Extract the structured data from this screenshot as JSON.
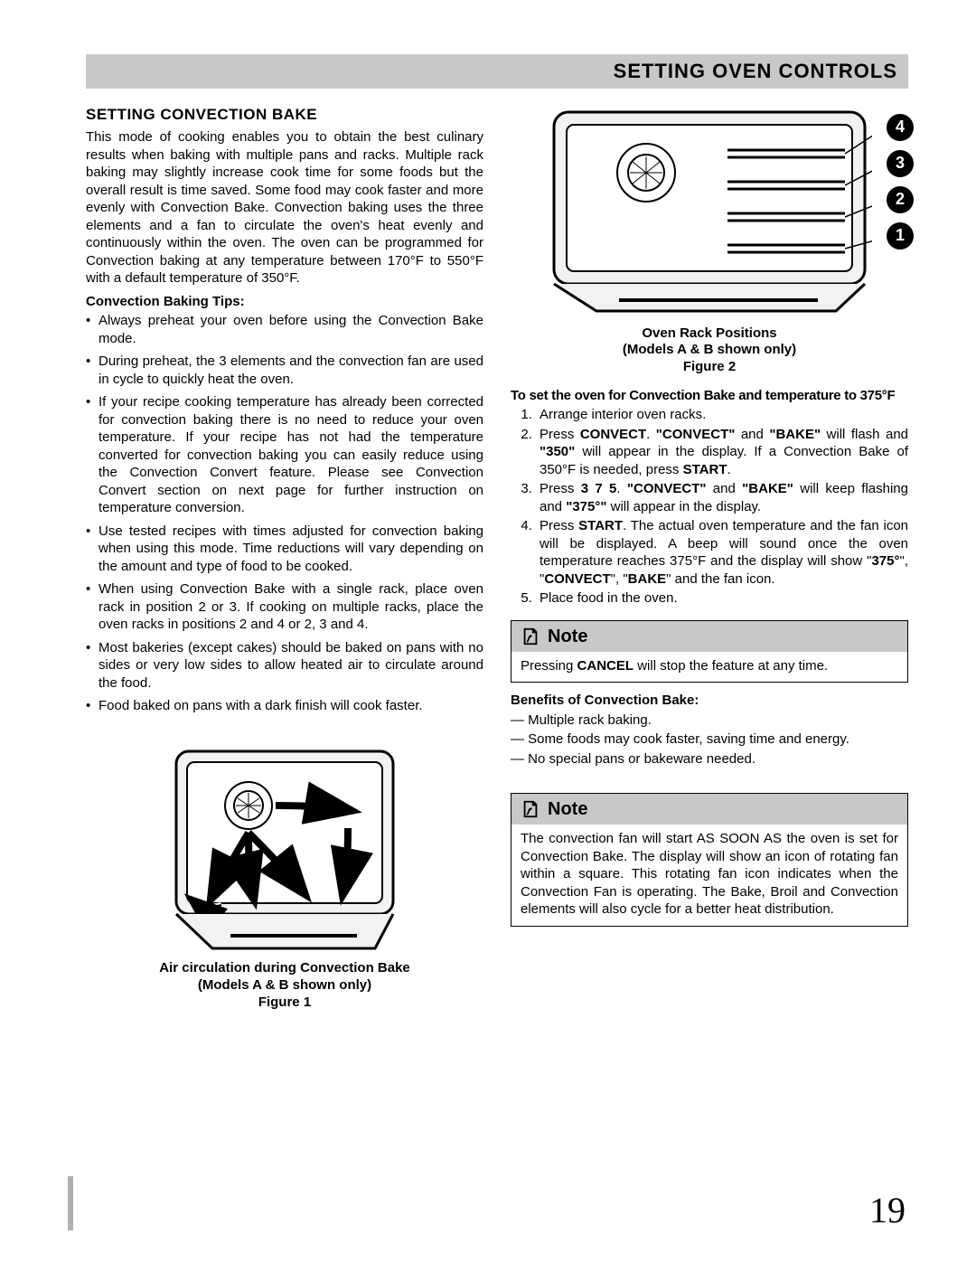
{
  "header": {
    "title": "SETTING OVEN CONTROLS"
  },
  "left": {
    "heading": "SETTING CONVECTION BAKE",
    "intro": "This mode of cooking enables you to obtain the best culinary results when baking with multiple pans and racks. Multiple rack baking may slightly increase cook time for some foods but the overall result is time saved. Some food may cook faster and more evenly with Convection Bake. Convection baking uses the three elements and a fan to circulate the oven's heat evenly and continuously within the oven. The oven can be programmed for Convection baking at any temperature between 170°F to 550°F with a default temperature of 350°F.",
    "tips_heading": "Convection Baking Tips:",
    "tips": [
      "Always preheat your oven before using the Convection Bake mode.",
      "During preheat, the 3 elements and the convection fan are used in cycle to quickly heat the oven.",
      "If your recipe cooking temperature has already been corrected for convection baking there is no need to reduce your oven temperature. If your recipe has not had the temperature converted for convection baking you can easily reduce using the Convection Convert feature. Please see Convection Convert section on next page for further instruction on temperature conversion.",
      "Use tested recipes with times adjusted for convection baking when using this mode. Time reductions will vary depending on the amount and type of food to be cooked.",
      "When using Convection Bake with a single rack, place oven rack in position 2 or 3. If cooking on multiple racks, place the oven racks in positions 2 and 4 or 2, 3 and 4.",
      "Most bakeries (except cakes) should be baked on pans with no sides or very low sides to allow heated air to circulate around the food.",
      "Food baked on pans with a dark finish will cook faster."
    ],
    "fig1_caption_l1": "Air circulation during Convection Bake",
    "fig1_caption_l2": "(Models A & B shown only)",
    "fig1_caption_l3": "Figure 1"
  },
  "right": {
    "rack_labels": [
      "4",
      "3",
      "2",
      "1"
    ],
    "fig2_caption_l1": "Oven Rack Positions",
    "fig2_caption_l2": "(Models A & B shown only)",
    "fig2_caption_l3": "Figure 2",
    "instr_heading": "To set the oven for Convection Bake and temperature to 375°F",
    "steps_html": [
      "Arrange interior oven racks.",
      "Press <b>CONVECT</b>. <b>\"CONVECT\"</b> and <b>\"BAKE\"</b> will flash and <b>\"350\"</b> will appear in the display. If a Convection Bake of 350°F is needed, press <b>START</b>.",
      "Press <b>3 7 5</b>. <b>\"CONVECT\"</b> and <b>\"BAKE\"</b> will keep flashing and <b>\"375°\"</b> will appear in the display.",
      "Press <b>START</b>. The actual oven temperature and the fan icon will be displayed. A beep will sound once the oven temperature reaches 375°F and the display will show \"<b>375°</b>\", \"<b>CONVECT</b>\", \"<b>BAKE</b>\" and the fan icon.",
      "Place food in the oven."
    ],
    "note1_label": "Note",
    "note1_body_html": "Pressing <b>CANCEL</b> will stop the feature at any time.",
    "benefits_heading": "Benefits of Convection Bake:",
    "benefits": [
      "— Multiple rack baking.",
      "— Some foods may cook faster, saving time and energy.",
      "— No special pans or bakeware needed."
    ],
    "note2_label": "Note",
    "note2_body": "The convection fan will start AS SOON AS the oven is set for Convection Bake. The display will show an icon of rotating fan within a square. This rotating fan icon indicates when the Convection Fan is operating. The Bake, Broil and Convection elements will also cycle for a better heat distribution."
  },
  "page_number": "19"
}
